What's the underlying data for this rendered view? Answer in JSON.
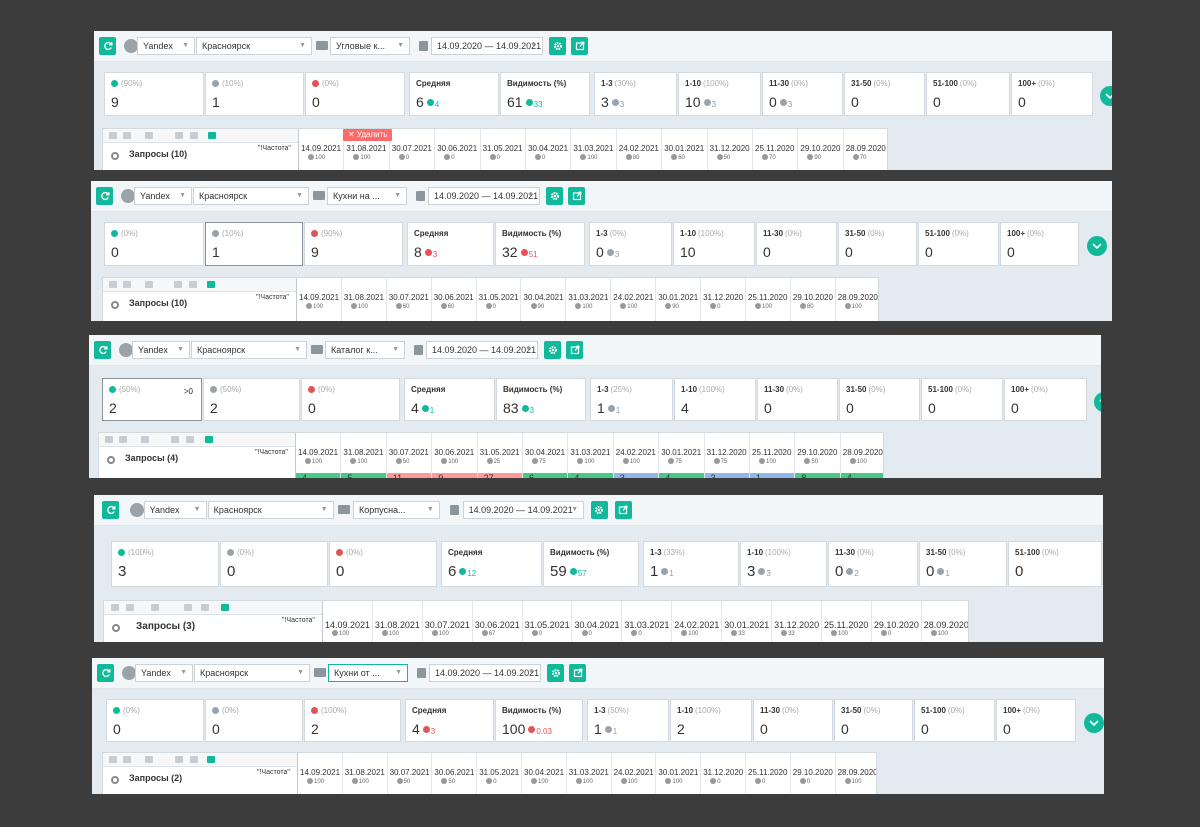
{
  "colors": {
    "accent": "#10b99a",
    "green": "#10b99a",
    "red": "#e05555",
    "gray": "#9aa3aa",
    "delete": "#ff6b6b"
  },
  "panels": [
    {
      "engine": "Yandex",
      "city": "Красноярск",
      "project": "Угловые к...",
      "period": "14.09.2020 — 14.09.2021",
      "cards": [
        {
          "pct": "(90%)",
          "value": "9"
        },
        {
          "pct": "(10%)",
          "value": "1"
        },
        {
          "pct": "(0%)",
          "value": "0"
        },
        {
          "label": "Средняя",
          "value": "6",
          "delta": "4",
          "dir": "up"
        },
        {
          "label": "Видимость (%)",
          "value": "61",
          "delta": "33",
          "dir": "up"
        },
        {
          "label": "1-3",
          "pct": "(30%)",
          "value": "3",
          "delta": "3",
          "dir": "flat"
        },
        {
          "label": "1-10",
          "pct": "(100%)",
          "value": "10",
          "delta": "3",
          "dir": "flat"
        },
        {
          "label": "11-30",
          "pct": "(0%)",
          "value": "0",
          "delta": "3",
          "dir": "flat"
        },
        {
          "label": "31-50",
          "pct": "(0%)",
          "value": "0"
        },
        {
          "label": "51-100",
          "pct": "(0%)",
          "value": "0"
        },
        {
          "label": "100+",
          "pct": "(0%)",
          "value": "0"
        }
      ],
      "query_label": "Запросы (10)",
      "freq_label": "\"!Частота\"",
      "delete_label": "✕ Удалить",
      "dates": [
        {
          "d": "14.09.2021",
          "v": "100"
        },
        {
          "d": "31.08.2021",
          "v": "100"
        },
        {
          "d": "30.07.2021",
          "v": "0"
        },
        {
          "d": "30.06.2021",
          "v": "0"
        },
        {
          "d": "31.05.2021",
          "v": "0"
        },
        {
          "d": "30.04.2021",
          "v": "0"
        },
        {
          "d": "31.03.2021",
          "v": "100"
        },
        {
          "d": "24.02.2021",
          "v": "80"
        },
        {
          "d": "30.01.2021",
          "v": "60"
        },
        {
          "d": "31.12.2020",
          "v": "50"
        },
        {
          "d": "25.11.2020",
          "v": "70"
        },
        {
          "d": "29.10.2020",
          "v": "90"
        },
        {
          "d": "28.09.2020",
          "v": "70"
        }
      ]
    },
    {
      "engine": "Yandex",
      "city": "Красноярск",
      "project": "Кухни на ...",
      "period": "14.09.2020 — 14.09.2021",
      "cards": [
        {
          "pct": "(0%)",
          "value": "0"
        },
        {
          "pct": "(10%)",
          "value": "1"
        },
        {
          "pct": "(90%)",
          "value": "9"
        },
        {
          "label": "Средняя",
          "value": "8",
          "delta": "3",
          "dir": "down"
        },
        {
          "label": "Видимость (%)",
          "value": "32",
          "delta": "51",
          "dir": "down"
        },
        {
          "label": "1-3",
          "pct": "(0%)",
          "value": "0",
          "delta": "3",
          "dir": "flat"
        },
        {
          "label": "1-10",
          "pct": "(100%)",
          "value": "10"
        },
        {
          "label": "11-30",
          "pct": "(0%)",
          "value": "0"
        },
        {
          "label": "31-50",
          "pct": "(0%)",
          "value": "0"
        },
        {
          "label": "51-100",
          "pct": "(0%)",
          "value": "0"
        },
        {
          "label": "100+",
          "pct": "(0%)",
          "value": "0"
        }
      ],
      "query_label": "Запросы (10)",
      "freq_label": "\"!Частота\"",
      "dates": [
        {
          "d": "14.09.2021",
          "v": "100"
        },
        {
          "d": "31.08.2021",
          "v": "100"
        },
        {
          "d": "30.07.2021",
          "v": "60"
        },
        {
          "d": "30.06.2021",
          "v": "60"
        },
        {
          "d": "31.05.2021",
          "v": "0"
        },
        {
          "d": "30.04.2021",
          "v": "90"
        },
        {
          "d": "31.03.2021",
          "v": "100"
        },
        {
          "d": "24.02.2021",
          "v": "100"
        },
        {
          "d": "30.01.2021",
          "v": "90"
        },
        {
          "d": "31.12.2020",
          "v": "0"
        },
        {
          "d": "25.11.2020",
          "v": "100"
        },
        {
          "d": "29.10.2020",
          "v": "80"
        },
        {
          "d": "28.09.2020",
          "v": "100"
        }
      ]
    },
    {
      "engine": "Yandex",
      "city": "Красноярск",
      "project": "Каталог к...",
      "period": "14.09.2020 — 14.09.2021",
      "cards": [
        {
          "pct": "(50%)",
          "value": "2",
          "extra": ">0"
        },
        {
          "pct": "(50%)",
          "value": "2"
        },
        {
          "pct": "(0%)",
          "value": "0"
        },
        {
          "label": "Средняя",
          "value": "4",
          "delta": "1",
          "dir": "up"
        },
        {
          "label": "Видимость (%)",
          "value": "83",
          "delta": "3",
          "dir": "up"
        },
        {
          "label": "1-3",
          "pct": "(25%)",
          "value": "1",
          "delta": "1",
          "dir": "flat"
        },
        {
          "label": "1-10",
          "pct": "(100%)",
          "value": "4"
        },
        {
          "label": "11-30",
          "pct": "(0%)",
          "value": "0"
        },
        {
          "label": "31-50",
          "pct": "(0%)",
          "value": "0"
        },
        {
          "label": "51-100",
          "pct": "(0%)",
          "value": "0"
        },
        {
          "label": "100+",
          "pct": "(0%)",
          "value": "0"
        }
      ],
      "query_label": "Запросы (4)",
      "freq_label": "\"!Частота\"",
      "dates": [
        {
          "d": "14.09.2021",
          "v": "100"
        },
        {
          "d": "31.08.2021",
          "v": "100"
        },
        {
          "d": "30.07.2021",
          "v": "50"
        },
        {
          "d": "30.06.2021",
          "v": "100"
        },
        {
          "d": "31.05.2021",
          "v": "25"
        },
        {
          "d": "30.04.2021",
          "v": "75"
        },
        {
          "d": "31.03.2021",
          "v": "100"
        },
        {
          "d": "24.02.2021",
          "v": "100"
        },
        {
          "d": "30.01.2021",
          "v": "75"
        },
        {
          "d": "31.12.2020",
          "v": "75"
        },
        {
          "d": "25.11.2020",
          "v": "100"
        },
        {
          "d": "29.10.2020",
          "v": "50"
        },
        {
          "d": "28.09.2020",
          "v": "100"
        }
      ],
      "row_cells": [
        "4",
        "5",
        "11",
        "9",
        "27",
        "6",
        "4",
        "3",
        "4",
        "3",
        "1",
        "8",
        "4"
      ]
    },
    {
      "engine": "Yandex",
      "city": "Красноярск",
      "project": "Корпусна...",
      "period": "14.09.2020 — 14.09.2021",
      "cards": [
        {
          "pct": "(100%)",
          "value": "3"
        },
        {
          "pct": "(0%)",
          "value": "0"
        },
        {
          "pct": "(0%)",
          "value": "0"
        },
        {
          "label": "Средняя",
          "value": "6",
          "delta": "12",
          "dir": "up"
        },
        {
          "label": "Видимость (%)",
          "value": "59",
          "delta": "57",
          "dir": "up"
        },
        {
          "label": "1-3",
          "pct": "(33%)",
          "value": "1",
          "delta": "1",
          "dir": "flat"
        },
        {
          "label": "1-10",
          "pct": "(100%)",
          "value": "3",
          "delta": "3",
          "dir": "flat"
        },
        {
          "label": "11-30",
          "pct": "(0%)",
          "value": "0",
          "delta": "2",
          "dir": "flat"
        },
        {
          "label": "31-50",
          "pct": "(0%)",
          "value": "0",
          "delta": "1",
          "dir": "flat"
        },
        {
          "label": "51-100",
          "pct": "(0%)",
          "value": "0"
        }
      ],
      "query_label": "Запросы (3)",
      "freq_label": "\"!Частота\"",
      "dates": [
        {
          "d": "14.09.2021",
          "v": "100"
        },
        {
          "d": "31.08.2021",
          "v": "100"
        },
        {
          "d": "30.07.2021",
          "v": "100"
        },
        {
          "d": "30.06.2021",
          "v": "67"
        },
        {
          "d": "31.05.2021",
          "v": "0"
        },
        {
          "d": "30.04.2021",
          "v": "0"
        },
        {
          "d": "31.03.2021",
          "v": "0"
        },
        {
          "d": "24.02.2021",
          "v": "100"
        },
        {
          "d": "30.01.2021",
          "v": "33"
        },
        {
          "d": "31.12.2020",
          "v": "33"
        },
        {
          "d": "25.11.2020",
          "v": "100"
        },
        {
          "d": "29.10.2020",
          "v": "0"
        },
        {
          "d": "28.09.2020",
          "v": "100"
        }
      ]
    },
    {
      "engine": "Yandex",
      "city": "Красноярск",
      "project": "Кухни от ...",
      "period": "14.09.2020 — 14.09.2021",
      "cards": [
        {
          "pct": "(0%)",
          "value": "0"
        },
        {
          "pct": "(0%)",
          "value": "0"
        },
        {
          "pct": "(100%)",
          "value": "2"
        },
        {
          "label": "Средняя",
          "value": "4",
          "delta": "3",
          "dir": "down"
        },
        {
          "label": "Видимость (%)",
          "value": "100",
          "delta": "0.03",
          "dir": "down"
        },
        {
          "label": "1-3",
          "pct": "(50%)",
          "value": "1",
          "delta": "1",
          "dir": "flat"
        },
        {
          "label": "1-10",
          "pct": "(100%)",
          "value": "2"
        },
        {
          "label": "11-30",
          "pct": "(0%)",
          "value": "0"
        },
        {
          "label": "31-50",
          "pct": "(0%)",
          "value": "0"
        },
        {
          "label": "51-100",
          "pct": "(0%)",
          "value": "0"
        },
        {
          "label": "100+",
          "pct": "(0%)",
          "value": "0"
        }
      ],
      "query_label": "Запросы (2)",
      "freq_label": "\"!Частота\"",
      "dates": [
        {
          "d": "14.09.2021",
          "v": "100"
        },
        {
          "d": "31.08.2021",
          "v": "100"
        },
        {
          "d": "30.07.2021",
          "v": "50"
        },
        {
          "d": "30.06.2021",
          "v": "50"
        },
        {
          "d": "31.05.2021",
          "v": "0"
        },
        {
          "d": "30.04.2021",
          "v": "100"
        },
        {
          "d": "31.03.2021",
          "v": "100"
        },
        {
          "d": "24.02.2021",
          "v": "100"
        },
        {
          "d": "30.01.2021",
          "v": "100"
        },
        {
          "d": "31.12.2020",
          "v": "0"
        },
        {
          "d": "25.11.2020",
          "v": "0"
        },
        {
          "d": "29.10.2020",
          "v": "0"
        },
        {
          "d": "28.09.2020",
          "v": "100"
        }
      ]
    }
  ]
}
